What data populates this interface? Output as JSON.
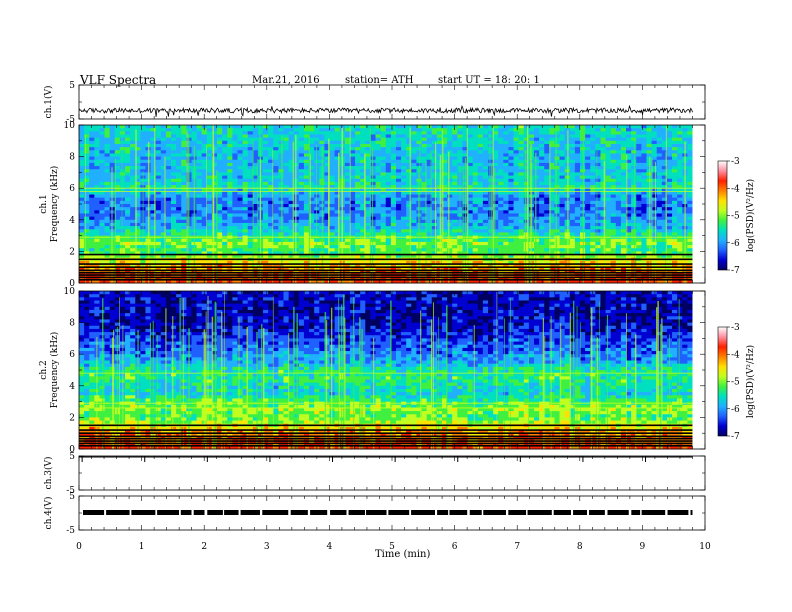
{
  "header": {
    "title": "VLF  Spectra",
    "date": "Mar.21, 2016",
    "station": "station= ATH",
    "start": "start  UT =   18: 20: 1"
  },
  "chart_data": {
    "type": "heatmap",
    "panels": [
      {
        "name": "ch.1(V)",
        "kind": "waveform",
        "ylim": [
          -5,
          5
        ],
        "yticks": [
          "5",
          "-5"
        ],
        "level": -2.5
      },
      {
        "name": "ch.1",
        "kind": "spectrogram",
        "ylabel": "Frequency  (kHz)",
        "ylim": [
          0,
          10
        ],
        "yticks": [
          "0",
          "2",
          "4",
          "6",
          "8",
          "10"
        ]
      },
      {
        "name": "ch.2",
        "kind": "spectrogram",
        "ylabel": "Frequency  (kHz)",
        "ylim": [
          0,
          10
        ],
        "yticks": [
          "0",
          "2",
          "4",
          "6",
          "8",
          "10"
        ]
      },
      {
        "name": "ch.3(V)",
        "kind": "waveform",
        "ylim": [
          -5,
          5
        ],
        "yticks": [
          "5",
          "-5"
        ],
        "level": 5
      },
      {
        "name": "ch.4(V)",
        "kind": "waveform",
        "ylim": [
          -5,
          5
        ],
        "yticks": [
          "5",
          "-5"
        ],
        "level": 0
      }
    ],
    "xlabel": "Time  (min)",
    "xlim": [
      0,
      10
    ],
    "xticks": [
      "0",
      "1",
      "2",
      "3",
      "4",
      "5",
      "6",
      "7",
      "8",
      "9",
      "10"
    ],
    "data_end_min": 9.8,
    "colorbar": {
      "label": "log(PSD)(V²/Hz)",
      "range": [
        -7,
        -3
      ],
      "ticks": [
        "-3",
        "-4",
        "-5",
        "-6",
        "-7"
      ],
      "colors": [
        "#000060",
        "#0000d0",
        "#2060ff",
        "#20b0ff",
        "#00e0c0",
        "#40f040",
        "#c0ff20",
        "#ffe000",
        "#ff8000",
        "#ff2000",
        "#ff90a0",
        "#ffffff"
      ]
    },
    "ch1_profile_khz_level": [
      [
        0,
        0.95
      ],
      [
        0.5,
        0.9
      ],
      [
        1.0,
        0.8
      ],
      [
        1.5,
        0.7
      ],
      [
        2.0,
        0.5
      ],
      [
        2.5,
        0.6
      ],
      [
        3.0,
        0.5
      ],
      [
        3.5,
        0.38
      ],
      [
        4.0,
        0.32
      ],
      [
        4.5,
        0.3
      ],
      [
        5.0,
        0.28
      ],
      [
        5.5,
        0.32
      ],
      [
        6.0,
        0.45
      ],
      [
        6.5,
        0.42
      ],
      [
        7.0,
        0.4
      ],
      [
        8.0,
        0.38
      ],
      [
        9.0,
        0.42
      ],
      [
        10.0,
        0.45
      ]
    ],
    "ch2_profile_khz_level": [
      [
        0,
        0.95
      ],
      [
        0.5,
        0.9
      ],
      [
        1.0,
        0.85
      ],
      [
        1.5,
        0.7
      ],
      [
        2.0,
        0.55
      ],
      [
        2.5,
        0.62
      ],
      [
        3.0,
        0.55
      ],
      [
        3.5,
        0.42
      ],
      [
        4.0,
        0.45
      ],
      [
        4.5,
        0.5
      ],
      [
        5.0,
        0.48
      ],
      [
        5.5,
        0.35
      ],
      [
        6.0,
        0.3
      ],
      [
        7.0,
        0.2
      ],
      [
        8.0,
        0.12
      ],
      [
        9.0,
        0.12
      ],
      [
        10.0,
        0.15
      ]
    ],
    "ch1_lines_khz": [
      0.2,
      0.35,
      0.5,
      0.65,
      0.8,
      1.0,
      1.2,
      1.5,
      1.8,
      2.9,
      5.8,
      6.0
    ],
    "ch2_lines_khz": [
      0.2,
      0.35,
      0.5,
      0.65,
      0.8,
      1.0,
      1.2,
      1.5,
      2.6,
      2.9,
      4.8
    ]
  }
}
